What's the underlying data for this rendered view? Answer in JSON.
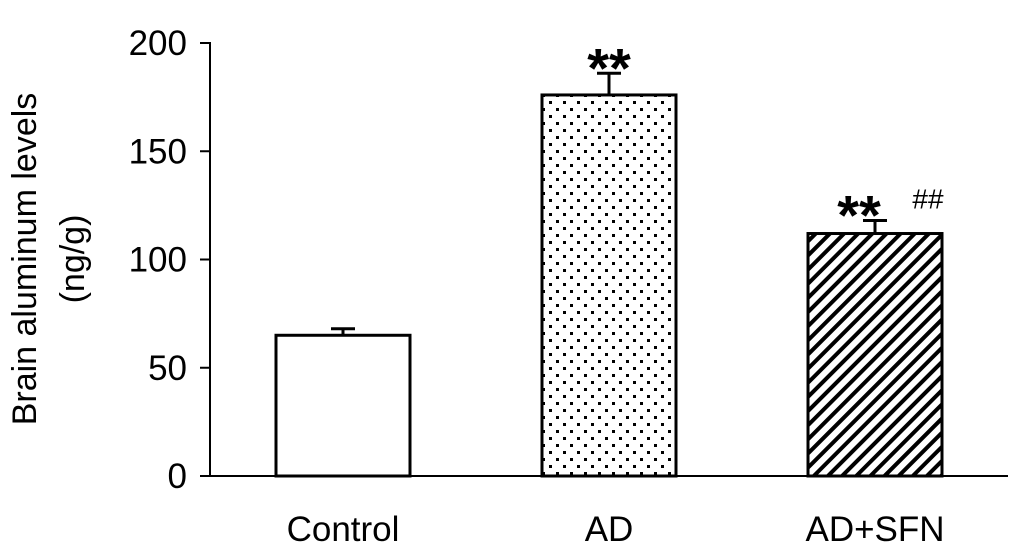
{
  "chart_data": {
    "type": "bar",
    "categories": [
      "Control",
      "AD",
      "AD+SFN"
    ],
    "values": [
      65,
      176,
      112
    ],
    "errors": [
      3,
      10,
      6
    ],
    "patterns": [
      "none",
      "dots",
      "diagonal"
    ],
    "ylabel_lines": [
      "Brain aluminum levels",
      "(ng/g)"
    ],
    "xlabel": "",
    "ylim": [
      0,
      200
    ],
    "yticks": [
      0,
      50,
      100,
      150,
      200
    ],
    "annotations": [
      {
        "category": "AD",
        "stars": "**",
        "hash": ""
      },
      {
        "category": "AD+SFN",
        "stars": "**",
        "hash": "##"
      }
    ],
    "grid": false,
    "legend": "none"
  }
}
